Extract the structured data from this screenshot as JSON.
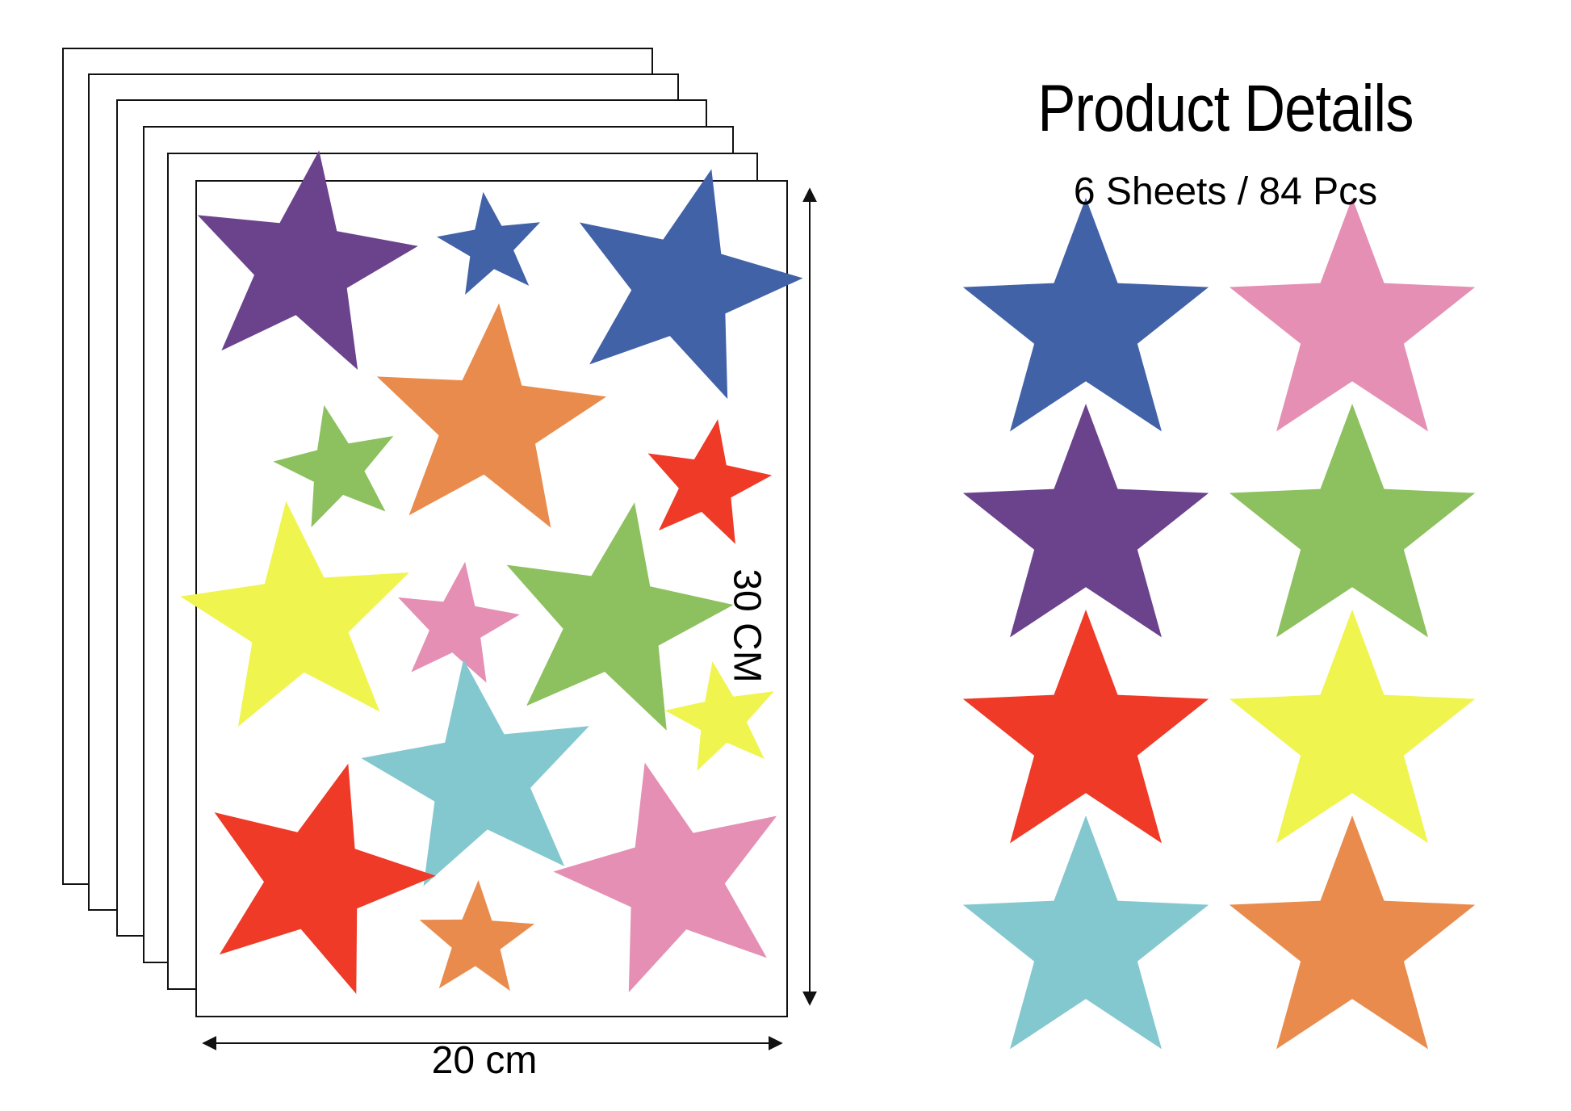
{
  "details": {
    "title": "Product Details",
    "subtitle": "6 Sheets / 84 Pcs"
  },
  "dimensions": {
    "width_label": "20 cm",
    "height_label": "30 CM"
  },
  "colors": {
    "blue": "#4262A8",
    "purple": "#6B438C",
    "orange": "#E98B4C",
    "green": "#8DC05E",
    "red": "#EE3A27",
    "yellow": "#F0F44E",
    "pink": "#E58FB4",
    "cyan": "#84C8CF",
    "sheet_border": "#111111"
  },
  "sheet_count": 6,
  "front_sheet_stars": [
    "purple",
    "blue",
    "blue",
    "orange",
    "green",
    "red",
    "yellow",
    "pink",
    "green",
    "yellow",
    "cyan",
    "red",
    "pink",
    "orange"
  ],
  "sample_stars": [
    "blue",
    "pink",
    "purple",
    "green",
    "red",
    "yellow",
    "cyan",
    "orange"
  ]
}
